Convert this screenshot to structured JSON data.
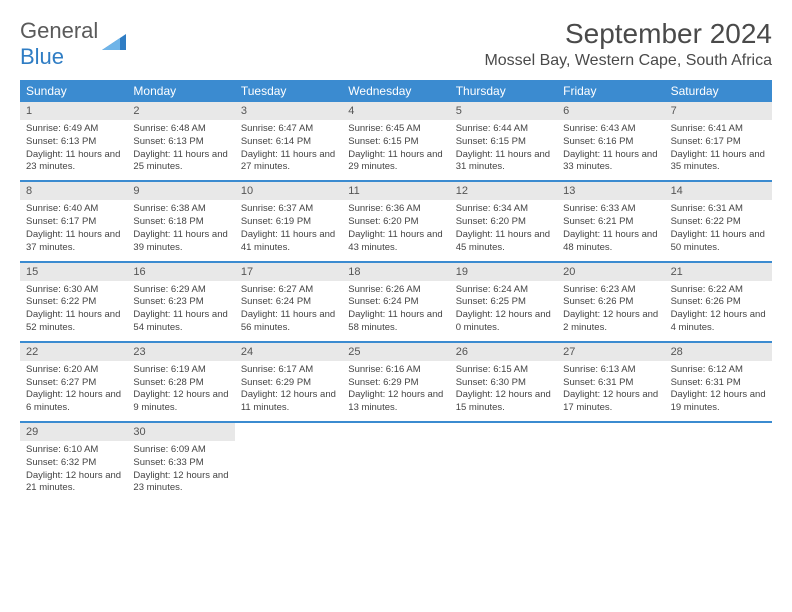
{
  "logo": {
    "text1": "General",
    "text2": "Blue"
  },
  "title": "September 2024",
  "location": "Mossel Bay, Western Cape, South Africa",
  "colors": {
    "header_bg": "#3b8bd0",
    "header_text": "#ffffff",
    "daynum_bg": "#e8e8e8",
    "border": "#3b8bd0",
    "logo_gray": "#5a5a5a",
    "logo_blue": "#2f7dc4"
  },
  "dayNames": [
    "Sunday",
    "Monday",
    "Tuesday",
    "Wednesday",
    "Thursday",
    "Friday",
    "Saturday"
  ],
  "weeks": [
    [
      {
        "n": "1",
        "sr": "6:49 AM",
        "ss": "6:13 PM",
        "dl": "11 hours and 23 minutes."
      },
      {
        "n": "2",
        "sr": "6:48 AM",
        "ss": "6:13 PM",
        "dl": "11 hours and 25 minutes."
      },
      {
        "n": "3",
        "sr": "6:47 AM",
        "ss": "6:14 PM",
        "dl": "11 hours and 27 minutes."
      },
      {
        "n": "4",
        "sr": "6:45 AM",
        "ss": "6:15 PM",
        "dl": "11 hours and 29 minutes."
      },
      {
        "n": "5",
        "sr": "6:44 AM",
        "ss": "6:15 PM",
        "dl": "11 hours and 31 minutes."
      },
      {
        "n": "6",
        "sr": "6:43 AM",
        "ss": "6:16 PM",
        "dl": "11 hours and 33 minutes."
      },
      {
        "n": "7",
        "sr": "6:41 AM",
        "ss": "6:17 PM",
        "dl": "11 hours and 35 minutes."
      }
    ],
    [
      {
        "n": "8",
        "sr": "6:40 AM",
        "ss": "6:17 PM",
        "dl": "11 hours and 37 minutes."
      },
      {
        "n": "9",
        "sr": "6:38 AM",
        "ss": "6:18 PM",
        "dl": "11 hours and 39 minutes."
      },
      {
        "n": "10",
        "sr": "6:37 AM",
        "ss": "6:19 PM",
        "dl": "11 hours and 41 minutes."
      },
      {
        "n": "11",
        "sr": "6:36 AM",
        "ss": "6:20 PM",
        "dl": "11 hours and 43 minutes."
      },
      {
        "n": "12",
        "sr": "6:34 AM",
        "ss": "6:20 PM",
        "dl": "11 hours and 45 minutes."
      },
      {
        "n": "13",
        "sr": "6:33 AM",
        "ss": "6:21 PM",
        "dl": "11 hours and 48 minutes."
      },
      {
        "n": "14",
        "sr": "6:31 AM",
        "ss": "6:22 PM",
        "dl": "11 hours and 50 minutes."
      }
    ],
    [
      {
        "n": "15",
        "sr": "6:30 AM",
        "ss": "6:22 PM",
        "dl": "11 hours and 52 minutes."
      },
      {
        "n": "16",
        "sr": "6:29 AM",
        "ss": "6:23 PM",
        "dl": "11 hours and 54 minutes."
      },
      {
        "n": "17",
        "sr": "6:27 AM",
        "ss": "6:24 PM",
        "dl": "11 hours and 56 minutes."
      },
      {
        "n": "18",
        "sr": "6:26 AM",
        "ss": "6:24 PM",
        "dl": "11 hours and 58 minutes."
      },
      {
        "n": "19",
        "sr": "6:24 AM",
        "ss": "6:25 PM",
        "dl": "12 hours and 0 minutes."
      },
      {
        "n": "20",
        "sr": "6:23 AM",
        "ss": "6:26 PM",
        "dl": "12 hours and 2 minutes."
      },
      {
        "n": "21",
        "sr": "6:22 AM",
        "ss": "6:26 PM",
        "dl": "12 hours and 4 minutes."
      }
    ],
    [
      {
        "n": "22",
        "sr": "6:20 AM",
        "ss": "6:27 PM",
        "dl": "12 hours and 6 minutes."
      },
      {
        "n": "23",
        "sr": "6:19 AM",
        "ss": "6:28 PM",
        "dl": "12 hours and 9 minutes."
      },
      {
        "n": "24",
        "sr": "6:17 AM",
        "ss": "6:29 PM",
        "dl": "12 hours and 11 minutes."
      },
      {
        "n": "25",
        "sr": "6:16 AM",
        "ss": "6:29 PM",
        "dl": "12 hours and 13 minutes."
      },
      {
        "n": "26",
        "sr": "6:15 AM",
        "ss": "6:30 PM",
        "dl": "12 hours and 15 minutes."
      },
      {
        "n": "27",
        "sr": "6:13 AM",
        "ss": "6:31 PM",
        "dl": "12 hours and 17 minutes."
      },
      {
        "n": "28",
        "sr": "6:12 AM",
        "ss": "6:31 PM",
        "dl": "12 hours and 19 minutes."
      }
    ],
    [
      {
        "n": "29",
        "sr": "6:10 AM",
        "ss": "6:32 PM",
        "dl": "12 hours and 21 minutes."
      },
      {
        "n": "30",
        "sr": "6:09 AM",
        "ss": "6:33 PM",
        "dl": "12 hours and 23 minutes."
      },
      null,
      null,
      null,
      null,
      null
    ]
  ],
  "labels": {
    "sunrise": "Sunrise: ",
    "sunset": "Sunset: ",
    "daylight": "Daylight: "
  }
}
